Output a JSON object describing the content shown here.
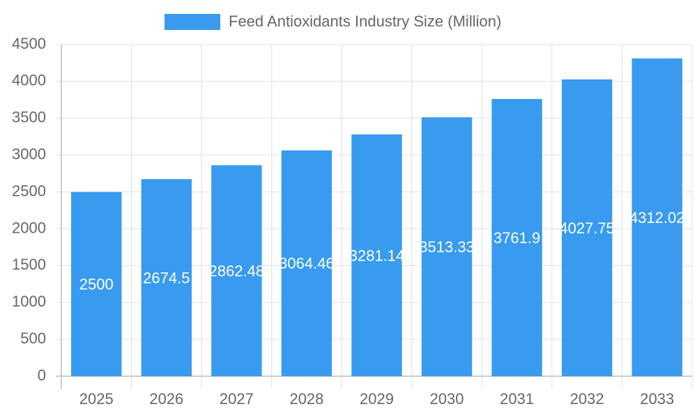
{
  "chart_data": {
    "type": "bar",
    "categories": [
      "2025",
      "2026",
      "2027",
      "2028",
      "2029",
      "2030",
      "2031",
      "2032",
      "2033"
    ],
    "series": [
      {
        "name": "Feed Antioxidants Industry Size (Million)",
        "color": "#389bf0",
        "values": [
          2500,
          2674.5,
          2862.48,
          3064.46,
          3281.14,
          3513.33,
          3761.9,
          4027.75,
          4312.02
        ]
      }
    ],
    "ylim": [
      0,
      4500
    ],
    "yticks": [
      0,
      500,
      1000,
      1500,
      2000,
      2500,
      3000,
      3500,
      4000,
      4500
    ],
    "grid": true,
    "legend": "top",
    "data_labels": true
  }
}
